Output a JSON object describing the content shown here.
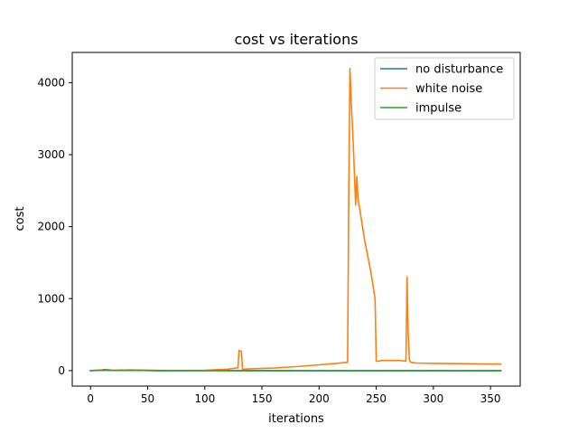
{
  "chart_data": {
    "type": "line",
    "title": "cost vs iterations",
    "xlabel": "iterations",
    "ylabel": "cost",
    "xlim": [
      -16,
      376
    ],
    "ylim": [
      -215,
      4420
    ],
    "xticks": [
      0,
      50,
      100,
      150,
      200,
      250,
      300,
      350
    ],
    "yticks": [
      0,
      1000,
      2000,
      3000,
      4000
    ],
    "xtick_labels": [
      "0",
      "50",
      "100",
      "150",
      "200",
      "250",
      "300",
      "350"
    ],
    "ytick_labels": [
      "0",
      "1000",
      "2000",
      "3000",
      "4000"
    ],
    "grid": false,
    "legend_position": "top-right",
    "series": [
      {
        "name": "no disturbance",
        "color": "#1f77b4",
        "x": [
          0,
          10,
          20,
          40,
          60,
          100,
          150,
          200,
          250,
          300,
          359
        ],
        "y": [
          0,
          5,
          2,
          3,
          0,
          1,
          0,
          0,
          0,
          0,
          0
        ]
      },
      {
        "name": "white noise",
        "color": "#ff7f0e",
        "x": [
          0,
          10,
          12,
          20,
          35,
          60,
          100,
          120,
          129,
          130,
          131,
          132,
          133,
          134,
          140,
          160,
          180,
          200,
          215,
          225,
          226,
          227,
          228,
          230,
          232,
          233,
          234,
          236,
          240,
          245,
          249,
          250,
          252,
          255,
          270,
          276,
          277,
          278,
          279,
          280,
          282,
          285,
          300,
          330,
          359
        ],
        "y": [
          0,
          10,
          15,
          3,
          8,
          2,
          5,
          20,
          40,
          280,
          270,
          270,
          20,
          20,
          25,
          35,
          55,
          80,
          100,
          115,
          2500,
          4200,
          3800,
          3100,
          2300,
          2700,
          2400,
          2200,
          1800,
          1400,
          1000,
          130,
          130,
          140,
          140,
          130,
          1300,
          500,
          150,
          120,
          110,
          105,
          100,
          95,
          90
        ]
      },
      {
        "name": "impulse",
        "color": "#2ca02c",
        "x": [
          0,
          10,
          12,
          20,
          35,
          60,
          100,
          150,
          200,
          250,
          300,
          359
        ],
        "y": [
          0,
          5,
          12,
          2,
          6,
          0,
          0,
          0,
          0,
          0,
          0,
          0
        ]
      }
    ]
  }
}
